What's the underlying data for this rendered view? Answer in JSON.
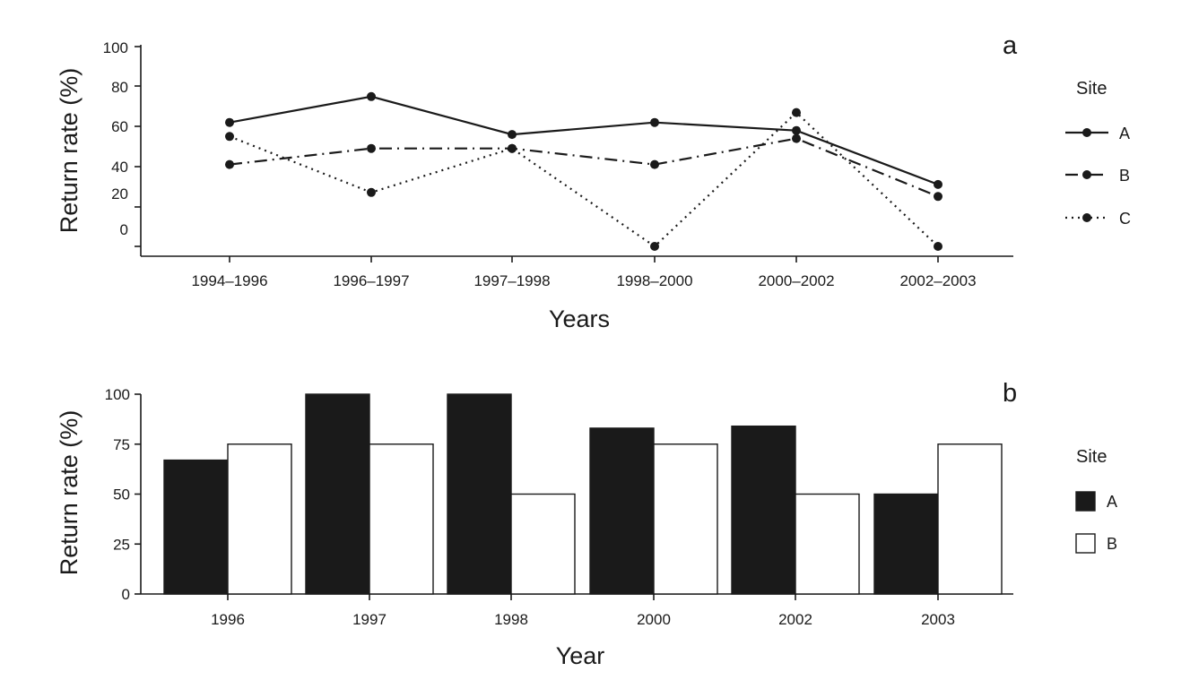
{
  "chart_data": [
    {
      "panel": "a",
      "type": "line",
      "xlabel": "Years",
      "ylabel": "Return rate (%)",
      "categories": [
        "1994–1996",
        "1996–1997",
        "1997–1998",
        "1998–2000",
        "2000–2002",
        "2002–2003"
      ],
      "y_tick_labels": [
        "100",
        "80",
        "60",
        "40",
        "20",
        "0"
      ],
      "legend_title": "Site",
      "legend_position": "right",
      "grid": false,
      "series": [
        {
          "name": "A",
          "style": "solid",
          "values": [
            62,
            75,
            56,
            62,
            58,
            31
          ]
        },
        {
          "name": "B",
          "style": "dash-dot",
          "values": [
            41,
            49,
            49,
            41,
            54,
            25
          ]
        },
        {
          "name": "C",
          "style": "dotted",
          "values": [
            55,
            27,
            49,
            0,
            67,
            0
          ]
        }
      ]
    },
    {
      "panel": "b",
      "type": "bar",
      "xlabel": "Year",
      "ylabel": "Return rate (%)",
      "categories": [
        "1996",
        "1997",
        "1998",
        "2000",
        "2002",
        "2003"
      ],
      "ylim": [
        0,
        100
      ],
      "y_ticks": [
        0,
        25,
        50,
        75,
        100
      ],
      "legend_title": "Site",
      "legend_position": "right",
      "grid": false,
      "series": [
        {
          "name": "A",
          "color": "#1a1a1a",
          "values": [
            67,
            100,
            100,
            83,
            84,
            50
          ]
        },
        {
          "name": "B",
          "color": "#ffffff",
          "values": [
            75,
            75,
            50,
            75,
            50,
            75
          ]
        }
      ]
    }
  ]
}
